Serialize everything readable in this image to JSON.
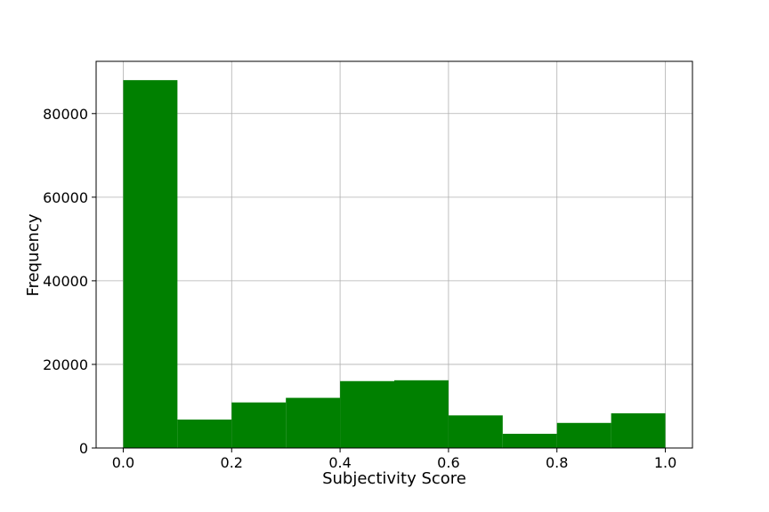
{
  "chart_data": {
    "type": "bar",
    "bin_edges": [
      0.0,
      0.1,
      0.2,
      0.3,
      0.4,
      0.5,
      0.6,
      0.7,
      0.8,
      0.9,
      1.0
    ],
    "values": [
      88000,
      6800,
      10900,
      12000,
      16000,
      16200,
      7800,
      3400,
      6000,
      8300
    ],
    "title": "",
    "xlabel": "Subjectivity Score",
    "ylabel": "Frequency",
    "xlim": [
      -0.05,
      1.05
    ],
    "ylim": [
      0,
      92500
    ],
    "xticks": [
      0.0,
      0.2,
      0.4,
      0.6,
      0.8,
      1.0
    ],
    "xtick_labels": [
      "0.0",
      "0.2",
      "0.4",
      "0.6",
      "0.8",
      "1.0"
    ],
    "yticks": [
      0,
      20000,
      40000,
      60000,
      80000
    ],
    "ytick_labels": [
      "0",
      "20000",
      "40000",
      "60000",
      "80000"
    ],
    "bar_color": "#008000",
    "grid": true
  }
}
